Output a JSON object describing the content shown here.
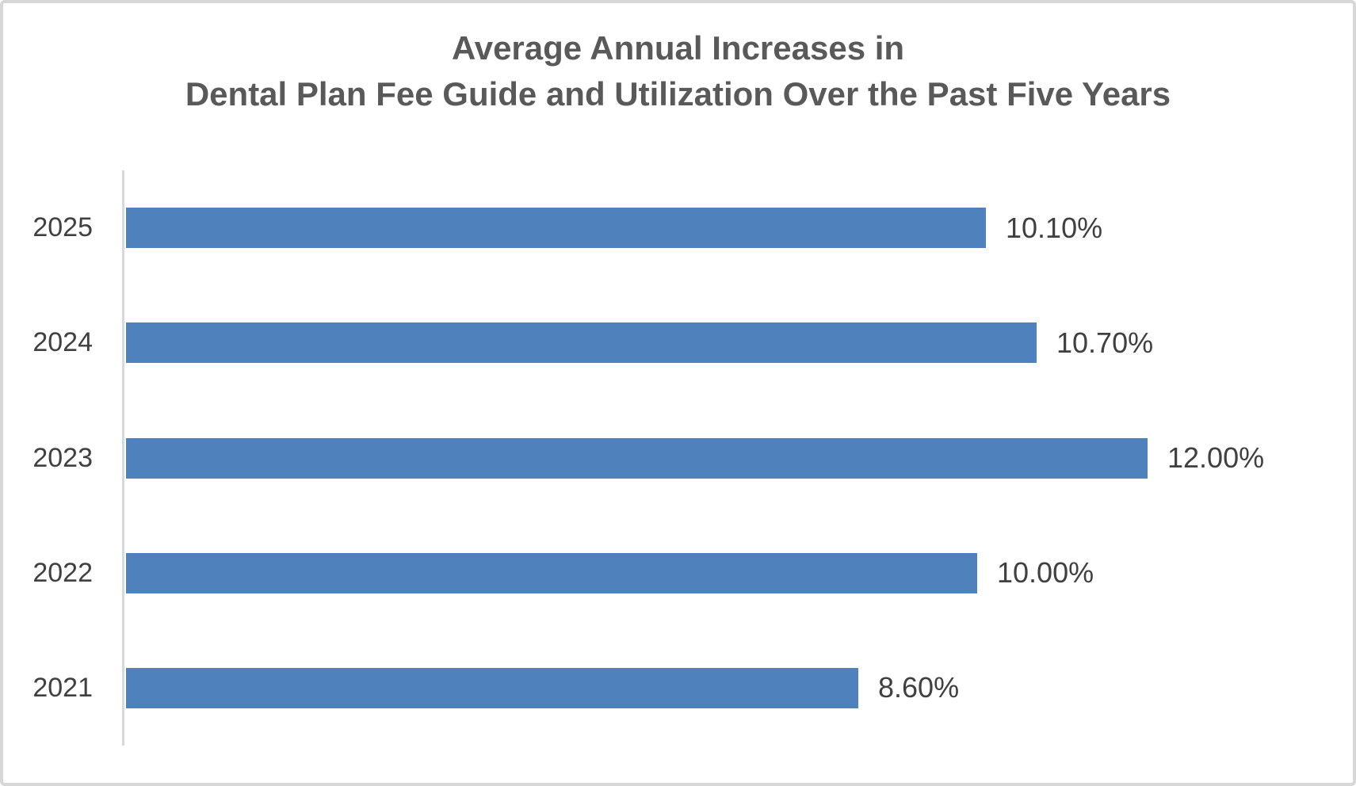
{
  "title": {
    "line1": "Average Annual Increases in",
    "line2": "Dental Plan Fee Guide and Utilization Over the Past Five Years"
  },
  "chart_data": {
    "type": "bar",
    "orientation": "horizontal",
    "title": "Average Annual Increases in Dental Plan Fee Guide and Utilization Over the Past Five Years",
    "categories": [
      "2025",
      "2024",
      "2023",
      "2022",
      "2021"
    ],
    "values": [
      10.1,
      10.7,
      12.0,
      10.0,
      8.6
    ],
    "value_labels": [
      "10.10%",
      "10.70%",
      "12.00%",
      "10.00%",
      "8.60%"
    ],
    "xlabel": "",
    "ylabel": "",
    "xlim": [
      0,
      14.5
    ],
    "grid": false,
    "legend": "none",
    "colors": {
      "bar": "#4f81bd",
      "title_text": "#595959",
      "label_text": "#404040",
      "axis_line": "#d9d9d9",
      "frame_border": "#d7d7d7",
      "background": "#ffffff"
    }
  }
}
